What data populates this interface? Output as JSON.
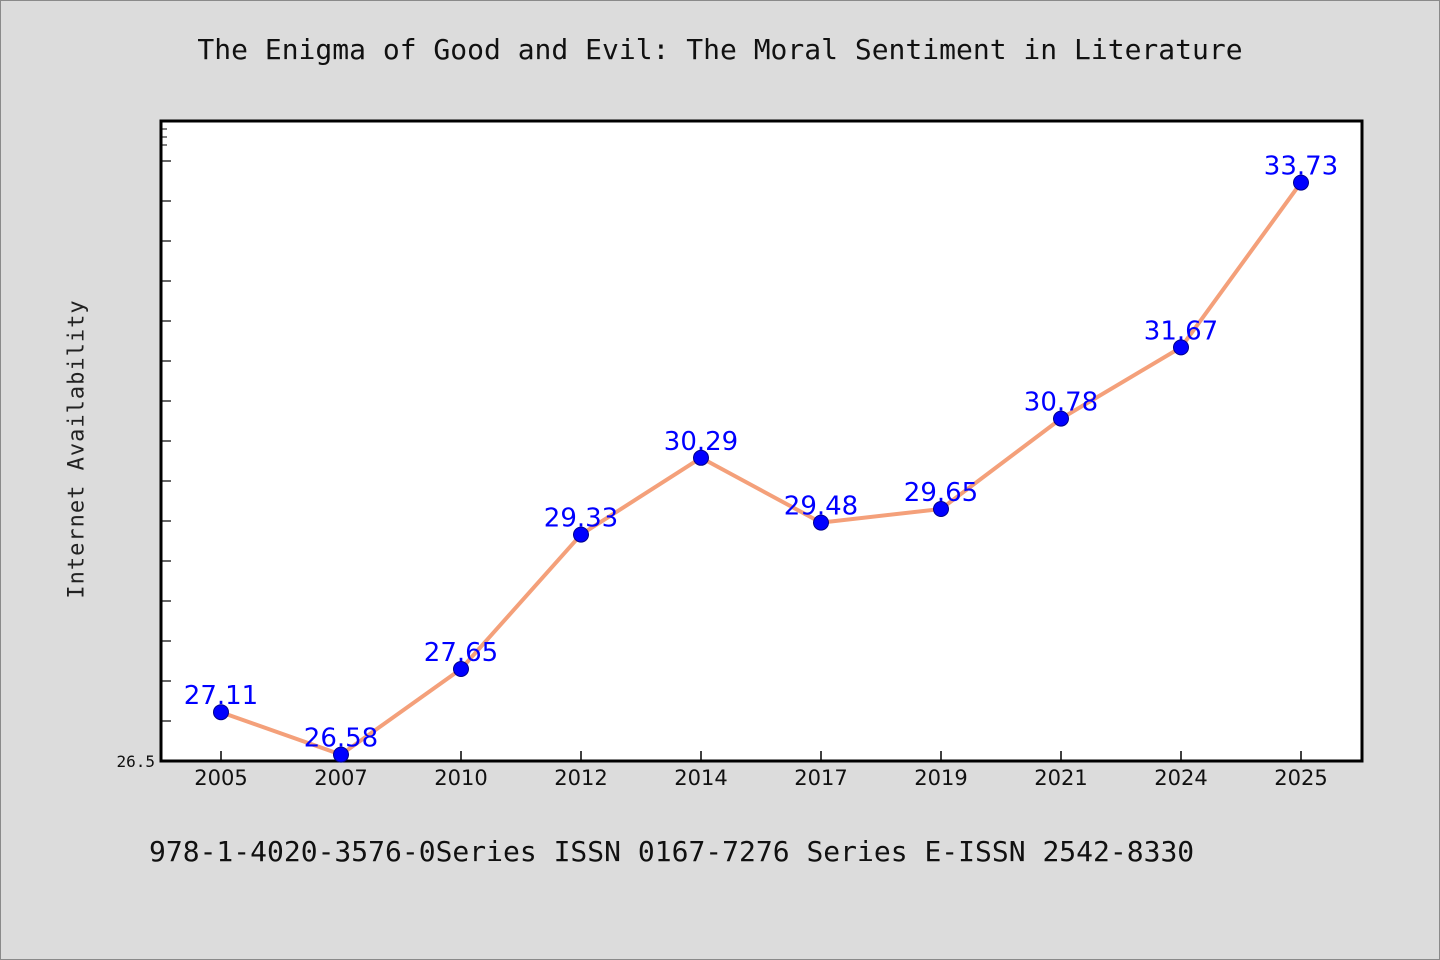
{
  "colors": {
    "background": "#dcdcdc",
    "plot_area": "#ffffff",
    "line": "#f4a07a",
    "marker": "#0000ff",
    "data_label": "#0000ff"
  },
  "footer_text": "978-1-4020-3576-0Series ISSN 0167-7276 Series E-ISSN 2542-8330",
  "chart_data": {
    "type": "line",
    "title": "The Enigma of Good and Evil: The Moral Sentiment in Literature",
    "xlabel": "",
    "ylabel": "Internet Availability",
    "categories": [
      "2005",
      "2007",
      "2010",
      "2012",
      "2014",
      "2017",
      "2019",
      "2021",
      "2024",
      "2025"
    ],
    "series": [
      {
        "values": [
          27.11,
          26.58,
          27.65,
          29.33,
          30.29,
          29.48,
          29.65,
          30.78,
          31.67,
          33.73
        ]
      }
    ],
    "data_labels": [
      "27.11",
      "26.58",
      "27.65",
      "29.33",
      "30.29",
      "29.48",
      "29.65",
      "30.78",
      "31.67",
      "33.73"
    ],
    "y_tick_labels": [
      "26.5"
    ],
    "ylim": [
      26.5,
      34.5
    ],
    "grid": false,
    "legend": "none",
    "markers": true
  }
}
